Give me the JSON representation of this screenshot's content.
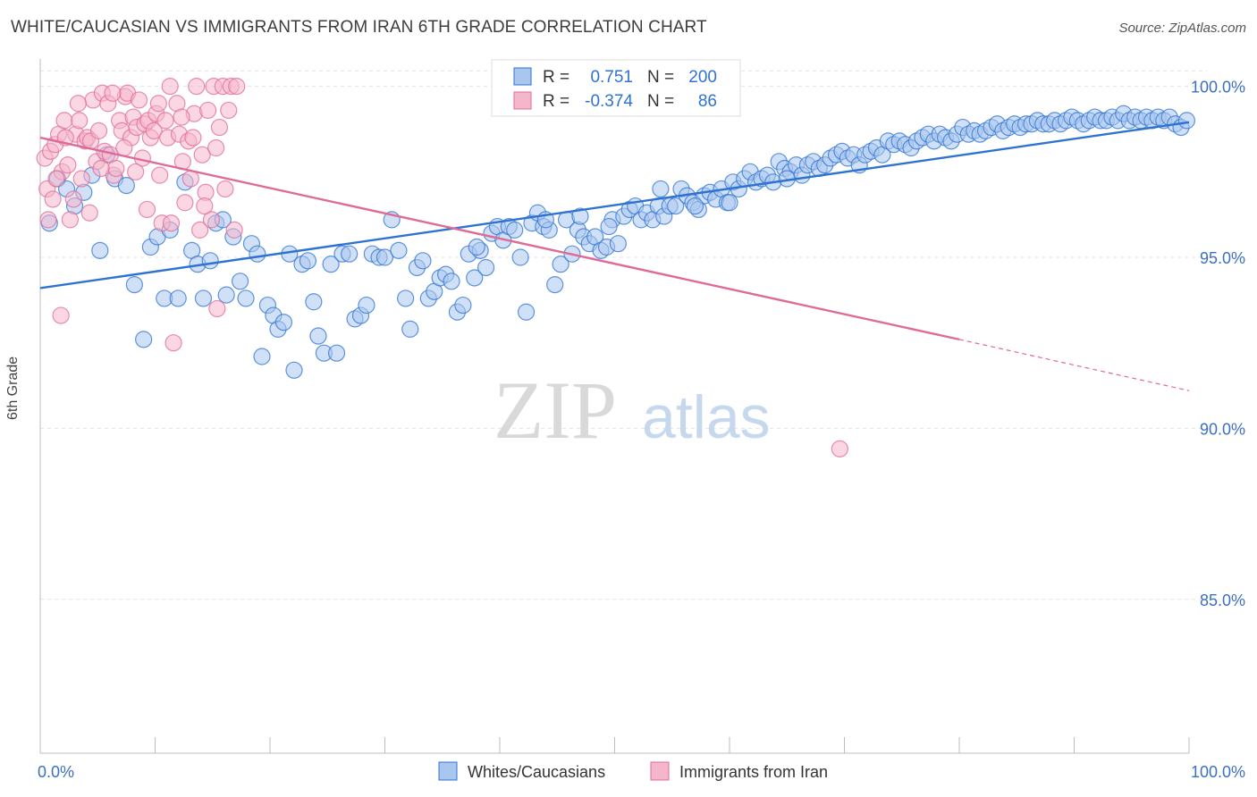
{
  "title": "WHITE/CAUCASIAN VS IMMIGRANTS FROM IRAN 6TH GRADE CORRELATION CHART",
  "source": "Source: ZipAtlas.com",
  "watermark": {
    "zip": "ZIP",
    "atlas": "atlas"
  },
  "colors": {
    "blue": "#2e73d2",
    "blue_fill": "#a9c6ef",
    "pink": "#e06a97",
    "pink_fill": "#f5b6cb",
    "axis_text": "#3b6fc4",
    "grid": "#e4e4e4"
  },
  "chart_data": {
    "type": "scatter",
    "xlabel": "",
    "ylabel": "6th Grade",
    "xlim": [
      0,
      100
    ],
    "ylim": [
      80.5,
      100.8
    ],
    "x_tick_labels": [
      "0.0%",
      "100.0%"
    ],
    "y_ticks": [
      85,
      90,
      95,
      100
    ],
    "y_tick_labels": [
      "85.0%",
      "90.0%",
      "95.0%",
      "100.0%"
    ],
    "legend": {
      "entries": [
        {
          "r_label": "R =",
          "r": "0.751",
          "n_label": "N =",
          "n": "200"
        },
        {
          "r_label": "R =",
          "r": "-0.374",
          "n_label": "N =",
          "n": "86"
        }
      ]
    },
    "series": [
      {
        "name": "Whites/Caucasians",
        "color": "blue",
        "trend": {
          "x0": 0,
          "y0": 94.1,
          "x1": 100,
          "y1": 98.95
        },
        "points": [
          [
            0.8,
            96.0
          ],
          [
            1.5,
            97.3
          ],
          [
            2.3,
            97.0
          ],
          [
            3.0,
            96.5
          ],
          [
            3.8,
            96.9
          ],
          [
            4.5,
            97.4
          ],
          [
            5.2,
            95.2
          ],
          [
            5.8,
            98.0
          ],
          [
            6.5,
            97.3
          ],
          [
            7.5,
            97.1
          ],
          [
            8.2,
            94.2
          ],
          [
            9.0,
            92.6
          ],
          [
            9.6,
            95.3
          ],
          [
            10.2,
            95.6
          ],
          [
            10.8,
            93.8
          ],
          [
            11.3,
            95.8
          ],
          [
            12.0,
            93.8
          ],
          [
            12.6,
            97.2
          ],
          [
            13.2,
            95.2
          ],
          [
            13.7,
            94.8
          ],
          [
            14.2,
            93.8
          ],
          [
            14.8,
            94.9
          ],
          [
            15.3,
            96.0
          ],
          [
            15.9,
            96.1
          ],
          [
            16.2,
            93.9
          ],
          [
            16.8,
            95.6
          ],
          [
            17.4,
            94.3
          ],
          [
            17.9,
            93.8
          ],
          [
            18.4,
            95.4
          ],
          [
            18.9,
            95.1
          ],
          [
            19.3,
            92.1
          ],
          [
            19.8,
            93.6
          ],
          [
            20.3,
            93.3
          ],
          [
            20.7,
            92.9
          ],
          [
            21.2,
            93.1
          ],
          [
            21.7,
            95.1
          ],
          [
            22.1,
            91.7
          ],
          [
            22.8,
            94.8
          ],
          [
            23.3,
            94.9
          ],
          [
            23.8,
            93.7
          ],
          [
            24.2,
            92.7
          ],
          [
            24.7,
            92.2
          ],
          [
            25.3,
            94.8
          ],
          [
            25.8,
            92.2
          ],
          [
            26.3,
            95.1
          ],
          [
            26.9,
            95.1
          ],
          [
            27.4,
            93.2
          ],
          [
            27.9,
            93.3
          ],
          [
            28.4,
            93.6
          ],
          [
            28.9,
            95.1
          ],
          [
            29.5,
            95.0
          ],
          [
            30.0,
            95.0
          ],
          [
            30.6,
            96.1
          ],
          [
            31.2,
            95.2
          ],
          [
            31.8,
            93.8
          ],
          [
            32.2,
            92.9
          ],
          [
            32.8,
            94.7
          ],
          [
            33.3,
            94.9
          ],
          [
            33.8,
            93.8
          ],
          [
            34.3,
            94.0
          ],
          [
            34.8,
            94.4
          ],
          [
            35.3,
            94.5
          ],
          [
            35.8,
            94.3
          ],
          [
            36.3,
            93.4
          ],
          [
            36.8,
            93.6
          ],
          [
            37.3,
            95.1
          ],
          [
            37.8,
            94.4
          ],
          [
            38.3,
            95.2
          ],
          [
            38.8,
            94.7
          ],
          [
            39.3,
            95.7
          ],
          [
            39.8,
            95.9
          ],
          [
            40.3,
            95.5
          ],
          [
            40.8,
            95.9
          ],
          [
            41.3,
            95.8
          ],
          [
            41.8,
            95.0
          ],
          [
            42.3,
            93.4
          ],
          [
            42.8,
            96.0
          ],
          [
            43.3,
            96.3
          ],
          [
            43.8,
            95.9
          ],
          [
            44.3,
            95.8
          ],
          [
            44.8,
            94.2
          ],
          [
            45.3,
            94.8
          ],
          [
            45.8,
            96.1
          ],
          [
            46.3,
            95.1
          ],
          [
            46.8,
            95.8
          ],
          [
            47.3,
            95.6
          ],
          [
            47.8,
            95.4
          ],
          [
            48.3,
            95.6
          ],
          [
            48.8,
            95.2
          ],
          [
            49.3,
            95.3
          ],
          [
            49.8,
            96.1
          ],
          [
            50.3,
            95.4
          ],
          [
            50.8,
            96.2
          ],
          [
            51.3,
            96.4
          ],
          [
            51.8,
            96.5
          ],
          [
            52.3,
            96.1
          ],
          [
            52.8,
            96.3
          ],
          [
            53.3,
            96.1
          ],
          [
            53.8,
            96.5
          ],
          [
            54.3,
            96.2
          ],
          [
            54.8,
            96.5
          ],
          [
            55.3,
            96.5
          ],
          [
            55.8,
            97.0
          ],
          [
            56.3,
            96.8
          ],
          [
            56.8,
            96.6
          ],
          [
            57.3,
            96.4
          ],
          [
            57.8,
            96.8
          ],
          [
            58.3,
            96.9
          ],
          [
            58.8,
            96.7
          ],
          [
            59.3,
            97.0
          ],
          [
            59.8,
            96.6
          ],
          [
            60.3,
            97.2
          ],
          [
            60.8,
            97.0
          ],
          [
            61.3,
            97.3
          ],
          [
            61.8,
            97.5
          ],
          [
            62.3,
            97.2
          ],
          [
            62.8,
            97.3
          ],
          [
            63.3,
            97.4
          ],
          [
            63.8,
            97.2
          ],
          [
            64.3,
            97.8
          ],
          [
            64.8,
            97.6
          ],
          [
            65.3,
            97.5
          ],
          [
            65.8,
            97.7
          ],
          [
            66.3,
            97.4
          ],
          [
            66.8,
            97.7
          ],
          [
            67.3,
            97.8
          ],
          [
            67.8,
            97.6
          ],
          [
            68.3,
            97.7
          ],
          [
            68.8,
            97.9
          ],
          [
            69.3,
            98.0
          ],
          [
            69.8,
            98.1
          ],
          [
            70.3,
            97.9
          ],
          [
            70.8,
            98.0
          ],
          [
            71.3,
            97.7
          ],
          [
            71.8,
            98.0
          ],
          [
            72.3,
            98.1
          ],
          [
            72.8,
            98.2
          ],
          [
            73.3,
            98.0
          ],
          [
            73.8,
            98.4
          ],
          [
            74.3,
            98.3
          ],
          [
            74.8,
            98.4
          ],
          [
            75.3,
            98.3
          ],
          [
            75.8,
            98.2
          ],
          [
            76.3,
            98.4
          ],
          [
            76.8,
            98.5
          ],
          [
            77.3,
            98.6
          ],
          [
            77.8,
            98.4
          ],
          [
            78.3,
            98.6
          ],
          [
            78.8,
            98.5
          ],
          [
            79.3,
            98.4
          ],
          [
            79.8,
            98.6
          ],
          [
            80.3,
            98.8
          ],
          [
            80.8,
            98.6
          ],
          [
            81.3,
            98.7
          ],
          [
            81.8,
            98.6
          ],
          [
            82.3,
            98.7
          ],
          [
            82.8,
            98.8
          ],
          [
            83.3,
            98.9
          ],
          [
            83.8,
            98.7
          ],
          [
            84.3,
            98.8
          ],
          [
            84.8,
            98.9
          ],
          [
            85.3,
            98.8
          ],
          [
            85.8,
            98.9
          ],
          [
            86.3,
            98.9
          ],
          [
            86.8,
            99.0
          ],
          [
            87.3,
            98.9
          ],
          [
            87.8,
            98.9
          ],
          [
            88.3,
            99.0
          ],
          [
            88.8,
            98.9
          ],
          [
            89.3,
            99.0
          ],
          [
            89.8,
            99.1
          ],
          [
            90.3,
            99.0
          ],
          [
            90.8,
            98.9
          ],
          [
            91.3,
            99.0
          ],
          [
            91.8,
            99.1
          ],
          [
            92.3,
            99.0
          ],
          [
            92.8,
            99.0
          ],
          [
            93.3,
            99.1
          ],
          [
            93.8,
            99.0
          ],
          [
            94.3,
            99.2
          ],
          [
            94.8,
            99.0
          ],
          [
            95.3,
            99.1
          ],
          [
            95.8,
            99.0
          ],
          [
            96.3,
            99.1
          ],
          [
            96.8,
            99.0
          ],
          [
            97.3,
            99.1
          ],
          [
            97.8,
            99.0
          ],
          [
            98.3,
            99.1
          ],
          [
            98.8,
            98.9
          ],
          [
            99.3,
            98.8
          ],
          [
            99.8,
            99.0
          ],
          [
            65.0,
            97.3
          ],
          [
            47.0,
            96.2
          ],
          [
            54.0,
            97.0
          ],
          [
            60.0,
            96.6
          ],
          [
            57.0,
            96.5
          ],
          [
            38.0,
            95.3
          ],
          [
            44.0,
            96.1
          ],
          [
            49.5,
            95.9
          ]
        ]
      },
      {
        "name": "Immigrants from Iran",
        "color": "pink",
        "trend": {
          "x0": 0,
          "y0": 98.5,
          "x1": 80,
          "y1": 92.6,
          "dash_x1": 100,
          "dash_y1": 91.1
        },
        "points": [
          [
            0.4,
            97.9
          ],
          [
            0.6,
            97.0
          ],
          [
            0.9,
            98.1
          ],
          [
            1.1,
            96.7
          ],
          [
            1.3,
            98.3
          ],
          [
            1.6,
            98.6
          ],
          [
            1.9,
            97.5
          ],
          [
            2.1,
            99.0
          ],
          [
            2.4,
            97.7
          ],
          [
            2.6,
            96.1
          ],
          [
            2.9,
            96.7
          ],
          [
            3.1,
            98.6
          ],
          [
            3.4,
            99.0
          ],
          [
            3.6,
            97.3
          ],
          [
            3.9,
            98.4
          ],
          [
            4.1,
            98.5
          ],
          [
            4.4,
            98.4
          ],
          [
            4.6,
            99.6
          ],
          [
            4.9,
            97.8
          ],
          [
            5.1,
            98.7
          ],
          [
            5.4,
            99.8
          ],
          [
            5.6,
            98.1
          ],
          [
            5.9,
            99.5
          ],
          [
            6.1,
            98.0
          ],
          [
            6.4,
            97.4
          ],
          [
            6.6,
            97.6
          ],
          [
            6.9,
            99.0
          ],
          [
            7.1,
            98.7
          ],
          [
            7.4,
            99.7
          ],
          [
            7.6,
            99.8
          ],
          [
            7.9,
            98.5
          ],
          [
            8.1,
            99.1
          ],
          [
            8.4,
            98.8
          ],
          [
            8.6,
            99.6
          ],
          [
            8.9,
            97.9
          ],
          [
            9.1,
            98.9
          ],
          [
            9.4,
            99.0
          ],
          [
            9.6,
            98.5
          ],
          [
            9.9,
            98.7
          ],
          [
            10.1,
            99.2
          ],
          [
            10.4,
            97.4
          ],
          [
            10.6,
            96.0
          ],
          [
            10.9,
            99.0
          ],
          [
            11.1,
            98.5
          ],
          [
            11.4,
            96.0
          ],
          [
            11.6,
            92.5
          ],
          [
            11.9,
            99.5
          ],
          [
            12.1,
            98.6
          ],
          [
            12.4,
            97.8
          ],
          [
            12.6,
            96.6
          ],
          [
            12.9,
            98.4
          ],
          [
            13.1,
            97.3
          ],
          [
            13.4,
            99.2
          ],
          [
            13.6,
            100.0
          ],
          [
            13.9,
            95.8
          ],
          [
            14.1,
            98.0
          ],
          [
            14.4,
            96.9
          ],
          [
            14.6,
            99.3
          ],
          [
            14.9,
            96.1
          ],
          [
            15.1,
            100.0
          ],
          [
            15.4,
            93.5
          ],
          [
            15.6,
            98.8
          ],
          [
            15.9,
            100.0
          ],
          [
            16.1,
            97.0
          ],
          [
            16.4,
            99.3
          ],
          [
            16.6,
            100.0
          ],
          [
            16.9,
            95.8
          ],
          [
            17.1,
            100.0
          ],
          [
            0.7,
            96.1
          ],
          [
            1.4,
            97.3
          ],
          [
            2.2,
            98.5
          ],
          [
            3.3,
            99.5
          ],
          [
            4.3,
            96.3
          ],
          [
            5.3,
            97.6
          ],
          [
            6.3,
            99.8
          ],
          [
            7.3,
            98.2
          ],
          [
            8.3,
            97.5
          ],
          [
            9.3,
            96.4
          ],
          [
            10.3,
            99.5
          ],
          [
            11.3,
            100.0
          ],
          [
            12.3,
            99.1
          ],
          [
            13.3,
            98.5
          ],
          [
            14.3,
            96.5
          ],
          [
            15.3,
            98.2
          ],
          [
            69.6,
            89.4
          ],
          [
            1.8,
            93.3
          ]
        ]
      }
    ],
    "legend_bottom": [
      "Whites/Caucasians",
      "Immigrants from Iran"
    ]
  }
}
